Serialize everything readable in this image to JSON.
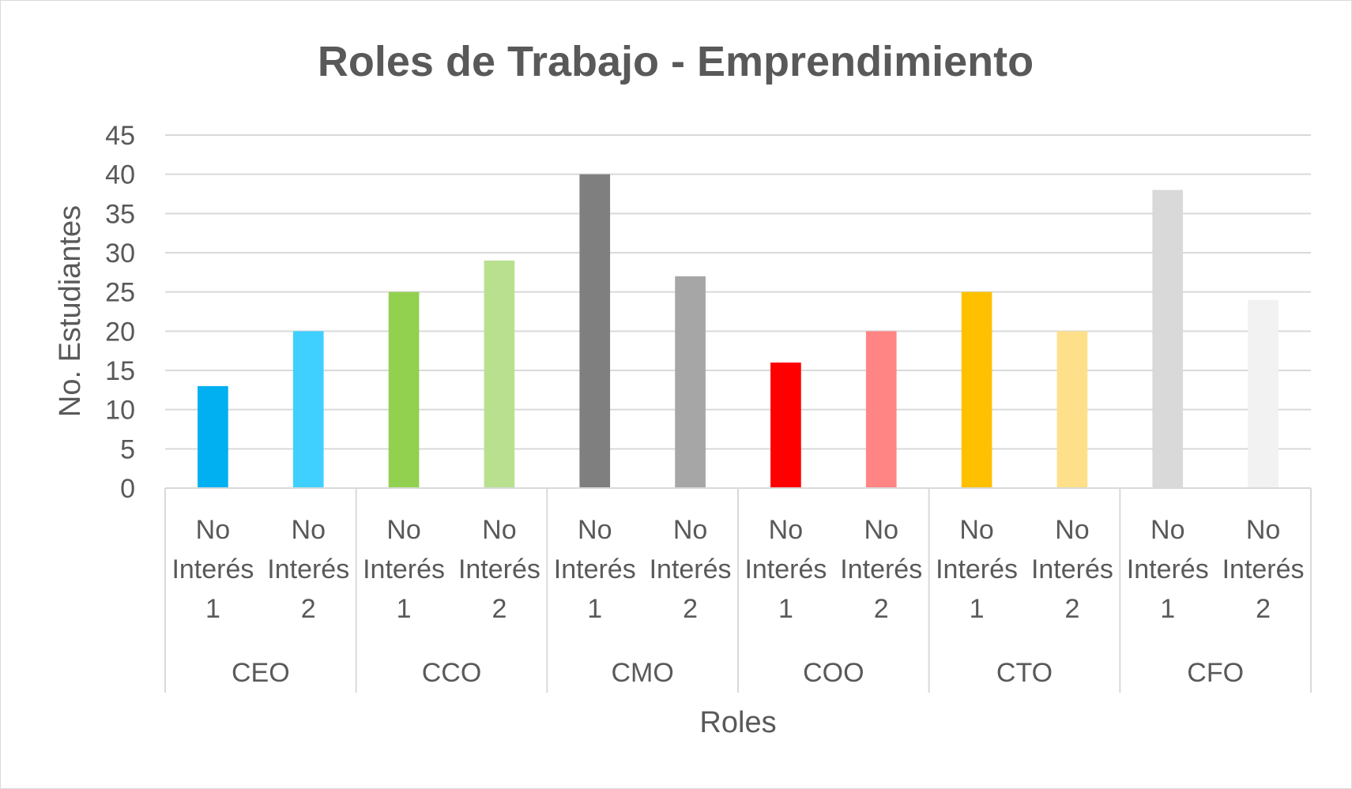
{
  "chart_data": {
    "type": "bar",
    "title": "Roles de Trabajo - Emprendimiento",
    "xlabel": "Roles",
    "ylabel": "No. Estudiantes",
    "ylim": [
      0,
      45
    ],
    "y_ticks": [
      "0",
      "5",
      "10",
      "15",
      "20",
      "25",
      "30",
      "35",
      "40",
      "45"
    ],
    "grid": true,
    "groups": [
      {
        "name": "CEO",
        "bars": [
          {
            "label": [
              "No",
              "Interés",
              "1"
            ],
            "value": 13,
            "color": "#00b0f0"
          },
          {
            "label": [
              "No",
              "Interés",
              "2"
            ],
            "value": 20,
            "color": "#3fd0ff"
          }
        ]
      },
      {
        "name": "CCO",
        "bars": [
          {
            "label": [
              "No",
              "Interés",
              "1"
            ],
            "value": 25,
            "color": "#92d050"
          },
          {
            "label": [
              "No",
              "Interés",
              "2"
            ],
            "value": 29,
            "color": "#b9e08f"
          }
        ]
      },
      {
        "name": "CMO",
        "bars": [
          {
            "label": [
              "No",
              "Interés",
              "1"
            ],
            "value": 40,
            "color": "#7f7f7f"
          },
          {
            "label": [
              "No",
              "Interés",
              "2"
            ],
            "value": 27,
            "color": "#a6a6a6"
          }
        ]
      },
      {
        "name": "COO",
        "bars": [
          {
            "label": [
              "No",
              "Interés",
              "1"
            ],
            "value": 16,
            "color": "#ff0000"
          },
          {
            "label": [
              "No",
              "Interés",
              "2"
            ],
            "value": 20,
            "color": "#ff8585"
          }
        ]
      },
      {
        "name": "CTO",
        "bars": [
          {
            "label": [
              "No",
              "Interés",
              "1"
            ],
            "value": 25,
            "color": "#ffc000"
          },
          {
            "label": [
              "No",
              "Interés",
              "2"
            ],
            "value": 20,
            "color": "#ffe08a"
          }
        ]
      },
      {
        "name": "CFO",
        "bars": [
          {
            "label": [
              "No",
              "Interés",
              "1"
            ],
            "value": 38,
            "color": "#d9d9d9"
          },
          {
            "label": [
              "No",
              "Interés",
              "2"
            ],
            "value": 24,
            "color": "#f2f2f2"
          }
        ]
      }
    ]
  }
}
